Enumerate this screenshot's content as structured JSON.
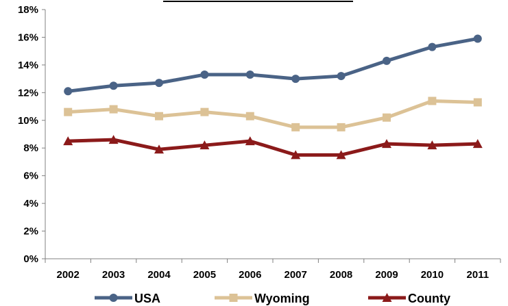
{
  "chart_data": {
    "type": "line",
    "title": "",
    "xlabel": "",
    "ylabel": "",
    "categories": [
      "2002",
      "2003",
      "2004",
      "2005",
      "2006",
      "2007",
      "2008",
      "2009",
      "2010",
      "2011"
    ],
    "ylim": [
      0,
      18
    ],
    "yticks": [
      0,
      2,
      4,
      6,
      8,
      10,
      12,
      14,
      16,
      18
    ],
    "ytick_labels": [
      "0%",
      "2%",
      "4%",
      "6%",
      "8%",
      "10%",
      "12%",
      "14%",
      "16%",
      "18%"
    ],
    "grid": false,
    "legend_position": "bottom",
    "series": [
      {
        "name": "USA",
        "color": "#4a6386",
        "marker": "circle",
        "values": [
          12.1,
          12.5,
          12.7,
          13.3,
          13.3,
          13.0,
          13.2,
          14.3,
          15.3,
          15.9
        ]
      },
      {
        "name": "Wyoming",
        "color": "#dcc296",
        "marker": "square",
        "values": [
          10.6,
          10.8,
          10.3,
          10.6,
          10.3,
          9.5,
          9.5,
          10.2,
          11.4,
          11.3
        ]
      },
      {
        "name": "County",
        "color": "#8b1a1a",
        "marker": "triangle",
        "values": [
          8.5,
          8.6,
          7.9,
          8.2,
          8.5,
          7.5,
          7.5,
          8.3,
          8.2,
          8.3
        ]
      }
    ]
  }
}
